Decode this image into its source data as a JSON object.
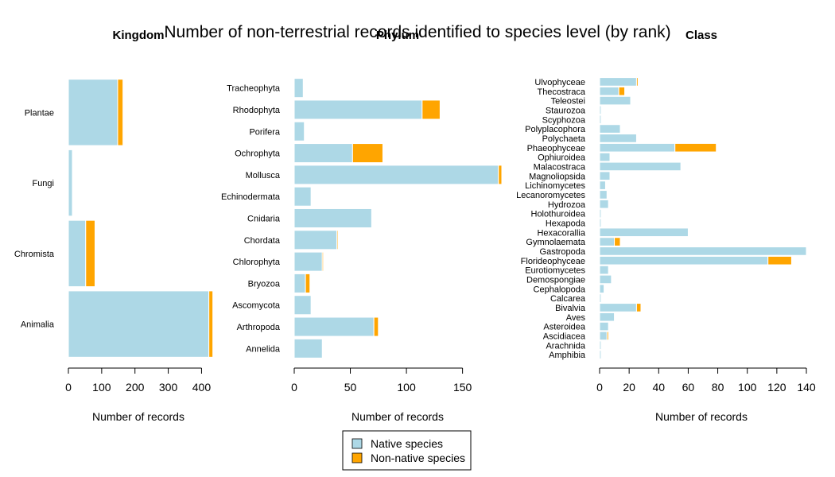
{
  "title": "Number of non-terrestrial records identified to species level (by rank)",
  "legend": {
    "placement": "bottom-center",
    "items": [
      {
        "label": "Native species",
        "color": "#add8e6"
      },
      {
        "label": "Non-native species",
        "color": "#ffa500"
      }
    ]
  },
  "chart_data": [
    {
      "type": "bar",
      "orientation": "horizontal",
      "stacked": true,
      "title": "Kingdom",
      "xlabel": "Number of records",
      "xlim": [
        0,
        430
      ],
      "xticks": [
        0,
        100,
        200,
        300,
        400
      ],
      "categories": [
        "Animalia",
        "Chromista",
        "Fungi",
        "Plantae"
      ],
      "series": [
        {
          "name": "Native species",
          "color": "#add8e6",
          "values": [
            422,
            52,
            12,
            148
          ]
        },
        {
          "name": "Non-native species",
          "color": "#ffa500",
          "values": [
            12,
            28,
            0,
            16
          ]
        }
      ]
    },
    {
      "type": "bar",
      "orientation": "horizontal",
      "stacked": true,
      "title": "Phylum",
      "xlabel": "Number of records",
      "xlim": [
        0,
        185
      ],
      "xticks": [
        0,
        50,
        100,
        150
      ],
      "categories": [
        "Annelida",
        "Arthropoda",
        "Ascomycota",
        "Bryozoa",
        "Chlorophyta",
        "Chordata",
        "Cnidaria",
        "Echinodermata",
        "Mollusca",
        "Ochrophyta",
        "Porifera",
        "Rhodophyta",
        "Tracheophyta"
      ],
      "series": [
        {
          "name": "Native species",
          "color": "#add8e6",
          "values": [
            25,
            71,
            15,
            10,
            25,
            38,
            69,
            15,
            182,
            52,
            9,
            114,
            8
          ]
        },
        {
          "name": "Non-native species",
          "color": "#ffa500",
          "values": [
            0,
            4,
            0,
            4,
            1,
            1,
            0,
            0,
            3,
            27,
            0,
            16,
            0
          ]
        }
      ]
    },
    {
      "type": "bar",
      "orientation": "horizontal",
      "stacked": true,
      "title": "Class",
      "xlabel": "Number of records",
      "xlim": [
        0,
        140
      ],
      "xticks": [
        0,
        20,
        40,
        60,
        80,
        100,
        120,
        140
      ],
      "categories": [
        "Amphibia",
        "Arachnida",
        "Ascidiacea",
        "Asteroidea",
        "Aves",
        "Bivalvia",
        "Calcarea",
        "Cephalopoda",
        "Demospongiae",
        "Eurotiomycetes",
        "Florideophyceae",
        "Gastropoda",
        "Gymnolaemata",
        "Hexacorallia",
        "Hexapoda",
        "Holothuroidea",
        "Hydrozoa",
        "Lecanoromycetes",
        "Lichinomycetes",
        "Magnoliopsida",
        "Malacostraca",
        "Ophiuroidea",
        "Phaeophyceae",
        "Polychaeta",
        "Polyplacophora",
        "Scyphozoa",
        "Staurozoa",
        "Teleostei",
        "Thecostraca",
        "Ulvophyceae"
      ],
      "series": [
        {
          "name": "Native species",
          "color": "#add8e6",
          "values": [
            1,
            1,
            5,
            6,
            10,
            25,
            1,
            3,
            8,
            6,
            114,
            140,
            10,
            60,
            1,
            1,
            6,
            5,
            4,
            7,
            55,
            7,
            51,
            25,
            14,
            1,
            1,
            21,
            13,
            25
          ]
        },
        {
          "name": "Non-native species",
          "color": "#ffa500",
          "values": [
            0,
            0,
            1,
            0,
            0,
            3,
            0,
            0,
            0,
            0,
            16,
            0,
            4,
            0,
            0,
            0,
            0,
            0,
            0,
            0,
            0,
            0,
            28,
            0,
            0,
            0,
            0,
            0,
            4,
            1
          ]
        }
      ]
    }
  ]
}
